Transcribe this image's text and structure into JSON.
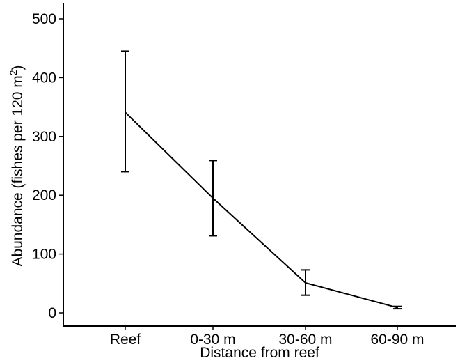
{
  "chart_data": {
    "type": "line",
    "categories": [
      "Reef",
      "0-30 m",
      "30-60 m",
      "60-90 m"
    ],
    "series": [
      {
        "values": [
          341,
          195,
          51,
          9
        ],
        "error_upper": [
          445,
          259,
          73,
          11
        ],
        "error_lower": [
          240,
          131,
          30,
          7
        ]
      }
    ],
    "xlabel": "Distance from reef",
    "ylabel_main": "Abundance (fishes per 120 m",
    "ylabel_sup": "2",
    "ylabel_end": ")",
    "ylim": [
      0,
      525
    ],
    "yticks": [
      0,
      100,
      200,
      300,
      400,
      500
    ],
    "grid": false,
    "line_color": "#000000"
  }
}
